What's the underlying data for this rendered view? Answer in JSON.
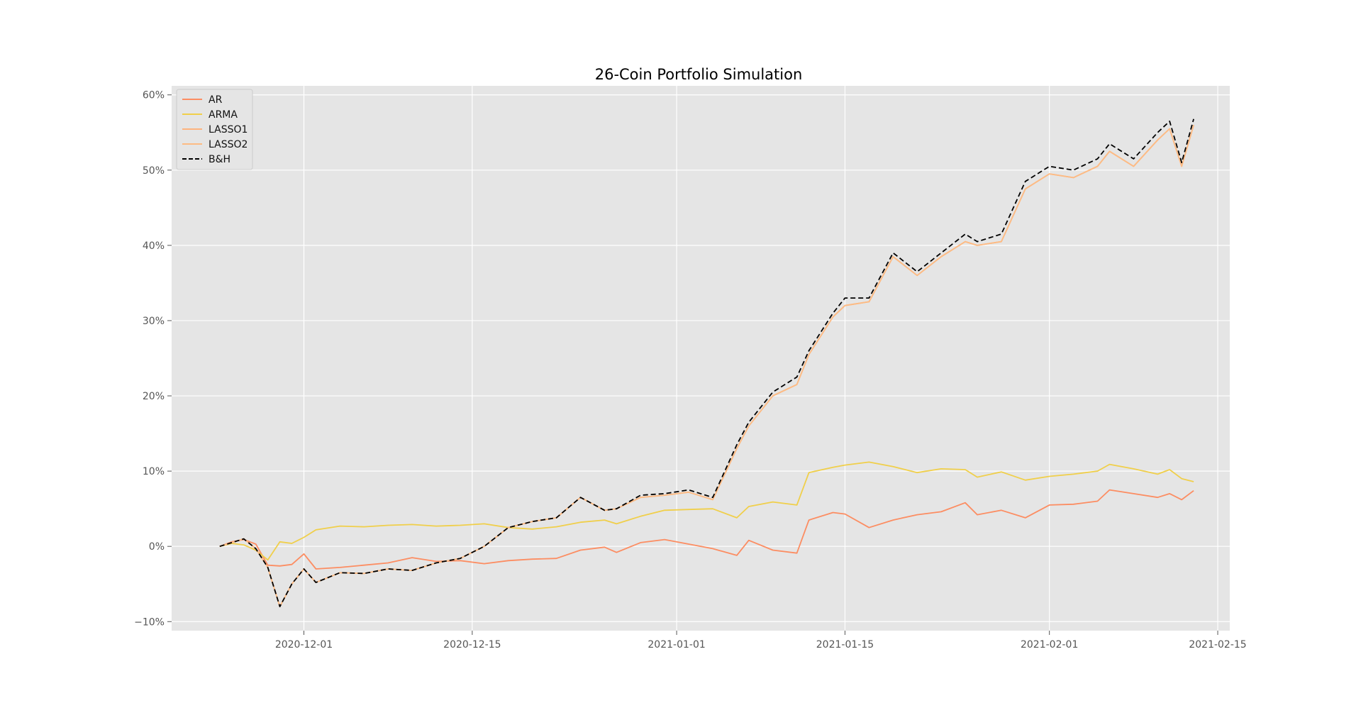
{
  "chart_data": {
    "type": "line",
    "title": "26-Coin Portfolio Simulation",
    "xlabel": "",
    "ylabel": "",
    "x_axis": {
      "type": "date",
      "range": [
        "2020-11-20",
        "2021-02-16"
      ],
      "ticks": [
        "2020-12-01",
        "2020-12-15",
        "2021-01-01",
        "2021-01-15",
        "2021-02-01",
        "2021-02-15"
      ]
    },
    "y_axis": {
      "range": [
        -11.2,
        61.2
      ],
      "ticks": [
        -10,
        0,
        10,
        20,
        30,
        40,
        50,
        60
      ],
      "tick_labels": [
        "−10%",
        "0%",
        "10%",
        "20%",
        "30%",
        "40%",
        "50%",
        "60%"
      ]
    },
    "grid": true,
    "background": "#e5e5e5",
    "legend": {
      "position": "top-left"
    },
    "series": [
      {
        "name": "AR",
        "color": "#fc8d62",
        "dash": "solid",
        "points": [
          [
            "2020-11-24",
            0.0
          ],
          [
            "2020-11-25",
            0.6
          ],
          [
            "2020-11-26",
            0.9
          ],
          [
            "2020-11-27",
            0.3
          ],
          [
            "2020-11-28",
            -2.5
          ],
          [
            "2020-11-29",
            -2.6
          ],
          [
            "2020-11-30",
            -2.4
          ],
          [
            "2020-12-01",
            -1.0
          ],
          [
            "2020-12-02",
            -3.0
          ],
          [
            "2020-12-04",
            -2.8
          ],
          [
            "2020-12-06",
            -2.5
          ],
          [
            "2020-12-08",
            -2.2
          ],
          [
            "2020-12-10",
            -1.5
          ],
          [
            "2020-12-12",
            -2.0
          ],
          [
            "2020-12-14",
            -1.9
          ],
          [
            "2020-12-16",
            -2.3
          ],
          [
            "2020-12-18",
            -1.9
          ],
          [
            "2020-12-20",
            -1.7
          ],
          [
            "2020-12-22",
            -1.6
          ],
          [
            "2020-12-24",
            -0.5
          ],
          [
            "2020-12-26",
            -0.1
          ],
          [
            "2020-12-27",
            -0.8
          ],
          [
            "2020-12-29",
            0.5
          ],
          [
            "2020-12-31",
            0.9
          ],
          [
            "2021-01-02",
            0.3
          ],
          [
            "2021-01-04",
            -0.3
          ],
          [
            "2021-01-06",
            -1.2
          ],
          [
            "2021-01-07",
            0.8
          ],
          [
            "2021-01-09",
            -0.5
          ],
          [
            "2021-01-11",
            -0.9
          ],
          [
            "2021-01-12",
            3.5
          ],
          [
            "2021-01-14",
            4.5
          ],
          [
            "2021-01-15",
            4.3
          ],
          [
            "2021-01-17",
            2.5
          ],
          [
            "2021-01-19",
            3.5
          ],
          [
            "2021-01-21",
            4.2
          ],
          [
            "2021-01-23",
            4.6
          ],
          [
            "2021-01-25",
            5.8
          ],
          [
            "2021-01-26",
            4.2
          ],
          [
            "2021-01-28",
            4.8
          ],
          [
            "2021-01-30",
            3.8
          ],
          [
            "2021-02-01",
            5.5
          ],
          [
            "2021-02-03",
            5.6
          ],
          [
            "2021-02-05",
            6.0
          ],
          [
            "2021-02-06",
            7.5
          ],
          [
            "2021-02-08",
            7.0
          ],
          [
            "2021-02-10",
            6.5
          ],
          [
            "2021-02-11",
            7.0
          ],
          [
            "2021-02-12",
            6.2
          ],
          [
            "2021-02-13",
            7.4
          ]
        ]
      },
      {
        "name": "ARMA",
        "color": "#f0cf4a",
        "dash": "solid",
        "points": [
          [
            "2020-11-24",
            0.0
          ],
          [
            "2020-11-25",
            0.4
          ],
          [
            "2020-11-26",
            0.2
          ],
          [
            "2020-11-27",
            -0.5
          ],
          [
            "2020-11-28",
            -1.8
          ],
          [
            "2020-11-29",
            0.6
          ],
          [
            "2020-11-30",
            0.4
          ],
          [
            "2020-12-01",
            1.2
          ],
          [
            "2020-12-02",
            2.2
          ],
          [
            "2020-12-04",
            2.7
          ],
          [
            "2020-12-06",
            2.6
          ],
          [
            "2020-12-08",
            2.8
          ],
          [
            "2020-12-10",
            2.9
          ],
          [
            "2020-12-12",
            2.7
          ],
          [
            "2020-12-14",
            2.8
          ],
          [
            "2020-12-16",
            3.0
          ],
          [
            "2020-12-18",
            2.5
          ],
          [
            "2020-12-20",
            2.3
          ],
          [
            "2020-12-22",
            2.6
          ],
          [
            "2020-12-24",
            3.2
          ],
          [
            "2020-12-26",
            3.5
          ],
          [
            "2020-12-27",
            3.0
          ],
          [
            "2020-12-29",
            4.0
          ],
          [
            "2020-12-31",
            4.8
          ],
          [
            "2021-01-02",
            4.9
          ],
          [
            "2021-01-04",
            5.0
          ],
          [
            "2021-01-06",
            3.8
          ],
          [
            "2021-01-07",
            5.3
          ],
          [
            "2021-01-09",
            5.9
          ],
          [
            "2021-01-11",
            5.5
          ],
          [
            "2021-01-12",
            9.8
          ],
          [
            "2021-01-14",
            10.5
          ],
          [
            "2021-01-15",
            10.8
          ],
          [
            "2021-01-17",
            11.2
          ],
          [
            "2021-01-19",
            10.6
          ],
          [
            "2021-01-21",
            9.8
          ],
          [
            "2021-01-23",
            10.3
          ],
          [
            "2021-01-25",
            10.2
          ],
          [
            "2021-01-26",
            9.2
          ],
          [
            "2021-01-28",
            9.9
          ],
          [
            "2021-01-30",
            8.8
          ],
          [
            "2021-02-01",
            9.3
          ],
          [
            "2021-02-03",
            9.6
          ],
          [
            "2021-02-05",
            10.0
          ],
          [
            "2021-02-06",
            10.9
          ],
          [
            "2021-02-08",
            10.3
          ],
          [
            "2021-02-10",
            9.6
          ],
          [
            "2021-02-11",
            10.2
          ],
          [
            "2021-02-12",
            9.0
          ],
          [
            "2021-02-13",
            8.6
          ]
        ]
      },
      {
        "name": "LASSO1",
        "color": "#fdb37e",
        "dash": "solid",
        "points": [
          [
            "2020-11-24",
            0.0
          ],
          [
            "2020-11-25",
            0.5
          ],
          [
            "2020-11-26",
            1.0
          ],
          [
            "2020-11-27",
            -0.3
          ],
          [
            "2020-11-28",
            -2.8
          ],
          [
            "2020-11-29",
            -8.0
          ],
          [
            "2020-11-30",
            -5.0
          ],
          [
            "2020-12-01",
            -3.0
          ],
          [
            "2020-12-02",
            -4.8
          ],
          [
            "2020-12-04",
            -3.5
          ],
          [
            "2020-12-06",
            -3.6
          ],
          [
            "2020-12-08",
            -3.0
          ],
          [
            "2020-12-10",
            -3.2
          ],
          [
            "2020-12-12",
            -2.2
          ],
          [
            "2020-12-14",
            -1.6
          ],
          [
            "2020-12-16",
            0.0
          ],
          [
            "2020-12-18",
            2.5
          ],
          [
            "2020-12-20",
            3.3
          ],
          [
            "2020-12-22",
            3.8
          ],
          [
            "2020-12-24",
            6.5
          ],
          [
            "2020-12-26",
            4.8
          ],
          [
            "2020-12-27",
            5.0
          ],
          [
            "2020-12-29",
            6.5
          ],
          [
            "2020-12-31",
            6.8
          ],
          [
            "2021-01-02",
            7.2
          ],
          [
            "2021-01-04",
            6.2
          ],
          [
            "2021-01-06",
            13.0
          ],
          [
            "2021-01-07",
            16.0
          ],
          [
            "2021-01-09",
            20.0
          ],
          [
            "2021-01-11",
            21.5
          ],
          [
            "2021-01-12",
            25.5
          ],
          [
            "2021-01-14",
            30.5
          ],
          [
            "2021-01-15",
            32.0
          ],
          [
            "2021-01-17",
            32.5
          ],
          [
            "2021-01-19",
            38.5
          ],
          [
            "2021-01-21",
            36.0
          ],
          [
            "2021-01-23",
            38.5
          ],
          [
            "2021-01-25",
            40.5
          ],
          [
            "2021-01-26",
            40.0
          ],
          [
            "2021-01-28",
            40.5
          ],
          [
            "2021-01-30",
            47.5
          ],
          [
            "2021-02-01",
            49.5
          ],
          [
            "2021-02-03",
            49.0
          ],
          [
            "2021-02-05",
            50.5
          ],
          [
            "2021-02-06",
            52.5
          ],
          [
            "2021-02-08",
            50.5
          ],
          [
            "2021-02-10",
            54.0
          ],
          [
            "2021-02-11",
            55.5
          ],
          [
            "2021-02-12",
            50.5
          ],
          [
            "2021-02-13",
            56.0
          ]
        ]
      },
      {
        "name": "LASSO2",
        "color": "#fdbb84",
        "dash": "solid",
        "points": [
          [
            "2020-11-24",
            0.0
          ],
          [
            "2020-11-25",
            0.5
          ],
          [
            "2020-11-26",
            1.0
          ],
          [
            "2020-11-27",
            -0.3
          ],
          [
            "2020-11-28",
            -2.8
          ],
          [
            "2020-11-29",
            -8.0
          ],
          [
            "2020-11-30",
            -5.0
          ],
          [
            "2020-12-01",
            -3.0
          ],
          [
            "2020-12-02",
            -4.8
          ],
          [
            "2020-12-04",
            -3.5
          ],
          [
            "2020-12-06",
            -3.6
          ],
          [
            "2020-12-08",
            -3.0
          ],
          [
            "2020-12-10",
            -3.2
          ],
          [
            "2020-12-12",
            -2.2
          ],
          [
            "2020-12-14",
            -1.6
          ],
          [
            "2020-12-16",
            0.0
          ],
          [
            "2020-12-18",
            2.5
          ],
          [
            "2020-12-20",
            3.3
          ],
          [
            "2020-12-22",
            3.8
          ],
          [
            "2020-12-24",
            6.5
          ],
          [
            "2020-12-26",
            4.8
          ],
          [
            "2020-12-27",
            5.0
          ],
          [
            "2020-12-29",
            6.5
          ],
          [
            "2020-12-31",
            6.8
          ],
          [
            "2021-01-02",
            7.2
          ],
          [
            "2021-01-04",
            6.2
          ],
          [
            "2021-01-06",
            13.0
          ],
          [
            "2021-01-07",
            16.0
          ],
          [
            "2021-01-09",
            20.0
          ],
          [
            "2021-01-11",
            21.5
          ],
          [
            "2021-01-12",
            25.5
          ],
          [
            "2021-01-14",
            30.5
          ],
          [
            "2021-01-15",
            32.0
          ],
          [
            "2021-01-17",
            32.5
          ],
          [
            "2021-01-19",
            38.5
          ],
          [
            "2021-01-21",
            36.0
          ],
          [
            "2021-01-23",
            38.5
          ],
          [
            "2021-01-25",
            40.5
          ],
          [
            "2021-01-26",
            40.0
          ],
          [
            "2021-01-28",
            40.5
          ],
          [
            "2021-01-30",
            47.5
          ],
          [
            "2021-02-01",
            49.5
          ],
          [
            "2021-02-03",
            49.0
          ],
          [
            "2021-02-05",
            50.5
          ],
          [
            "2021-02-06",
            52.5
          ],
          [
            "2021-02-08",
            50.5
          ],
          [
            "2021-02-10",
            54.0
          ],
          [
            "2021-02-11",
            55.5
          ],
          [
            "2021-02-12",
            50.5
          ],
          [
            "2021-02-13",
            56.0
          ]
        ]
      },
      {
        "name": "B&H",
        "color": "#000000",
        "dash": "dashed",
        "points": [
          [
            "2020-11-24",
            0.0
          ],
          [
            "2020-11-25",
            0.5
          ],
          [
            "2020-11-26",
            1.0
          ],
          [
            "2020-11-27",
            -0.3
          ],
          [
            "2020-11-28",
            -2.8
          ],
          [
            "2020-11-29",
            -8.0
          ],
          [
            "2020-11-30",
            -5.0
          ],
          [
            "2020-12-01",
            -3.0
          ],
          [
            "2020-12-02",
            -4.8
          ],
          [
            "2020-12-04",
            -3.5
          ],
          [
            "2020-12-06",
            -3.6
          ],
          [
            "2020-12-08",
            -3.0
          ],
          [
            "2020-12-10",
            -3.2
          ],
          [
            "2020-12-12",
            -2.2
          ],
          [
            "2020-12-14",
            -1.6
          ],
          [
            "2020-12-16",
            0.0
          ],
          [
            "2020-12-18",
            2.5
          ],
          [
            "2020-12-20",
            3.3
          ],
          [
            "2020-12-22",
            3.8
          ],
          [
            "2020-12-24",
            6.5
          ],
          [
            "2020-12-26",
            4.8
          ],
          [
            "2020-12-27",
            5.0
          ],
          [
            "2020-12-29",
            6.8
          ],
          [
            "2020-12-31",
            7.0
          ],
          [
            "2021-01-02",
            7.5
          ],
          [
            "2021-01-04",
            6.5
          ],
          [
            "2021-01-06",
            13.5
          ],
          [
            "2021-01-07",
            16.5
          ],
          [
            "2021-01-09",
            20.5
          ],
          [
            "2021-01-11",
            22.5
          ],
          [
            "2021-01-12",
            26.0
          ],
          [
            "2021-01-14",
            31.0
          ],
          [
            "2021-01-15",
            33.0
          ],
          [
            "2021-01-17",
            33.0
          ],
          [
            "2021-01-19",
            39.0
          ],
          [
            "2021-01-21",
            36.5
          ],
          [
            "2021-01-23",
            39.0
          ],
          [
            "2021-01-25",
            41.5
          ],
          [
            "2021-01-26",
            40.5
          ],
          [
            "2021-01-28",
            41.5
          ],
          [
            "2021-01-30",
            48.5
          ],
          [
            "2021-02-01",
            50.5
          ],
          [
            "2021-02-03",
            50.0
          ],
          [
            "2021-02-05",
            51.5
          ],
          [
            "2021-02-06",
            53.5
          ],
          [
            "2021-02-08",
            51.5
          ],
          [
            "2021-02-10",
            55.0
          ],
          [
            "2021-02-11",
            56.5
          ],
          [
            "2021-02-12",
            51.0
          ],
          [
            "2021-02-13",
            56.8
          ]
        ]
      }
    ]
  }
}
